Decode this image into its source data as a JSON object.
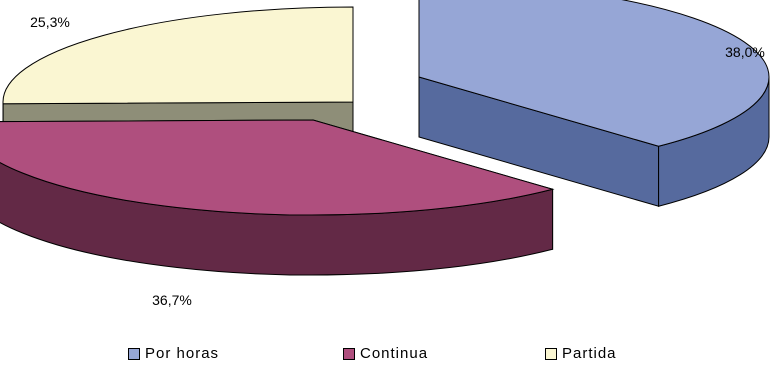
{
  "chart_data": {
    "type": "pie",
    "style": "3d-exploded",
    "categories": [
      "Por horas",
      "Continua",
      "Partida"
    ],
    "values": [
      38.0,
      36.7,
      25.3
    ],
    "data_labels": [
      "38,0%",
      "36,7%",
      "25,3%"
    ],
    "colors": {
      "Por horas": {
        "top": "#96A6D6",
        "side": "#566A9E"
      },
      "Continua": {
        "top": "#AF4F7E",
        "side": "#632946"
      },
      "Partida": {
        "top": "#FAF6D2",
        "side": "#8E8E78"
      }
    },
    "legend_position": "bottom",
    "title": "",
    "grid": false
  },
  "legend": {
    "items": [
      {
        "label": "Por horas",
        "color": "#96A6D6"
      },
      {
        "label": "Continua",
        "color": "#AF4F7E"
      },
      {
        "label": "Partida",
        "color": "#FAF6D2"
      }
    ]
  }
}
